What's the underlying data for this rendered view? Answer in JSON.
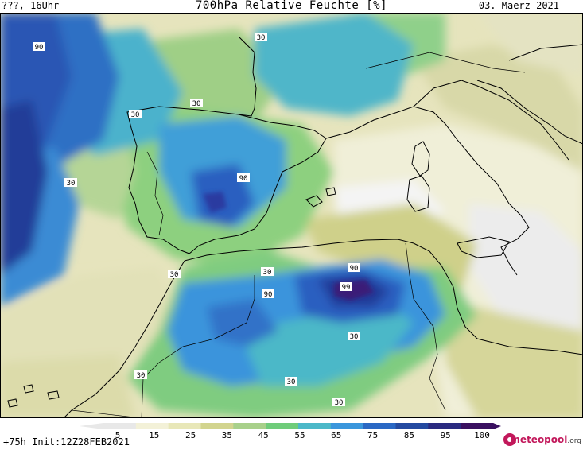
{
  "header": {
    "left": "???, 16Uhr",
    "title": "700hPa Relative Feuchte [%]",
    "right": "03. Maerz 2021"
  },
  "footer": {
    "run_info": "+75h Init:12Z28FEB2021",
    "brand": "meteopool",
    "brand_suffix": ".org"
  },
  "legend": {
    "ticks": [
      "5",
      "15",
      "25",
      "35",
      "45",
      "55",
      "65",
      "75",
      "85",
      "95",
      "100"
    ],
    "colors": [
      "#e8e8e8",
      "#f3f1d8",
      "#e8e7b8",
      "#d2d48e",
      "#a8d08a",
      "#6fcc7a",
      "#4cb8c8",
      "#3a96dc",
      "#2a68c4",
      "#244aa0",
      "#2a2a80",
      "#3a1060"
    ]
  },
  "contour_labels": [
    "90",
    "30",
    "30",
    "30",
    "30",
    "90",
    "30",
    "30",
    "90",
    "99",
    "90",
    "30",
    "30",
    "30",
    "30"
  ],
  "colors": {
    "sea_background": "#e9e7c4",
    "coastline": "#000000"
  }
}
